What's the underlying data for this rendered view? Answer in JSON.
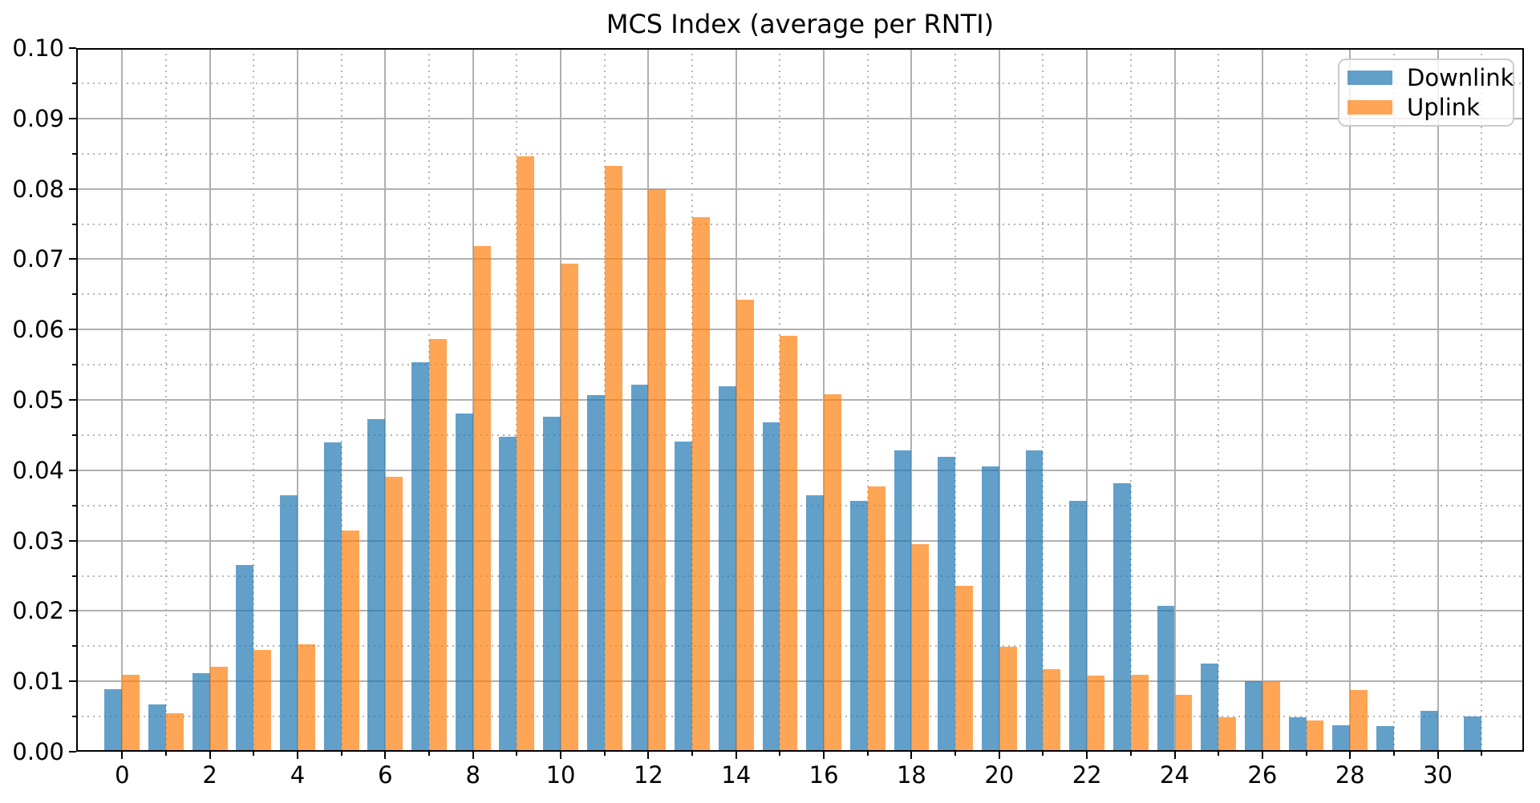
{
  "figure": {
    "background": "#ffffff"
  },
  "colors": {
    "downlink": "#1f77b4",
    "uplink": "#ff7f0e",
    "bar_alpha": 0.7,
    "grid_major": "#b0b0b0",
    "grid_minor": "#b4b4b4",
    "spine": "#000000",
    "legend_border": "#cccccc",
    "text": "#000000"
  },
  "chart_data": {
    "type": "bar",
    "title": "MCS Index (average per RNTI)",
    "xlabel": "",
    "ylabel": "",
    "categories": [
      0,
      1,
      2,
      3,
      4,
      5,
      6,
      7,
      8,
      9,
      10,
      11,
      12,
      13,
      14,
      15,
      16,
      17,
      18,
      19,
      20,
      21,
      22,
      23,
      24,
      25,
      26,
      27,
      28,
      29,
      30,
      31
    ],
    "series": [
      {
        "name": "Downlink",
        "color": "#1f77b4",
        "values": [
          0.0089,
          0.0067,
          0.0112,
          0.0265,
          0.0365,
          0.044,
          0.0473,
          0.0553,
          0.0481,
          0.0448,
          0.0476,
          0.0507,
          0.0522,
          0.0441,
          0.0519,
          0.0468,
          0.0365,
          0.0356,
          0.0428,
          0.0419,
          0.0406,
          0.0428,
          0.0357,
          0.0382,
          0.0207,
          0.0125,
          0.01,
          0.0049,
          0.0038,
          0.0036,
          0.0058,
          0.005
        ]
      },
      {
        "name": "Uplink",
        "color": "#ff7f0e",
        "values": [
          0.0109,
          0.0055,
          0.0121,
          0.0145,
          0.0153,
          0.0314,
          0.0391,
          0.0587,
          0.0719,
          0.0846,
          0.0694,
          0.0833,
          0.08,
          0.076,
          0.0642,
          0.0591,
          0.0508,
          0.0377,
          0.0295,
          0.0236,
          0.0149,
          0.0117,
          0.0108,
          0.0109,
          0.0081,
          0.0049,
          0.01,
          0.0044,
          0.0088,
          0,
          0,
          0
        ]
      }
    ],
    "ylim": [
      0,
      0.1
    ],
    "y_major_step": 0.01,
    "y_minor_step": 0.005,
    "x_major_tick_every": 2,
    "x_ticklabels": [
      "0",
      "2",
      "4",
      "6",
      "8",
      "10",
      "12",
      "14",
      "16",
      "18",
      "20",
      "22",
      "24",
      "26",
      "28",
      "30"
    ],
    "y_ticklabels": [
      "0.00",
      "0.01",
      "0.02",
      "0.03",
      "0.04",
      "0.05",
      "0.06",
      "0.07",
      "0.08",
      "0.09",
      "0.10"
    ],
    "grid": "major solid, minor dotted, both axes",
    "bar_width_fraction": 0.4,
    "legend_position": "upper right"
  }
}
